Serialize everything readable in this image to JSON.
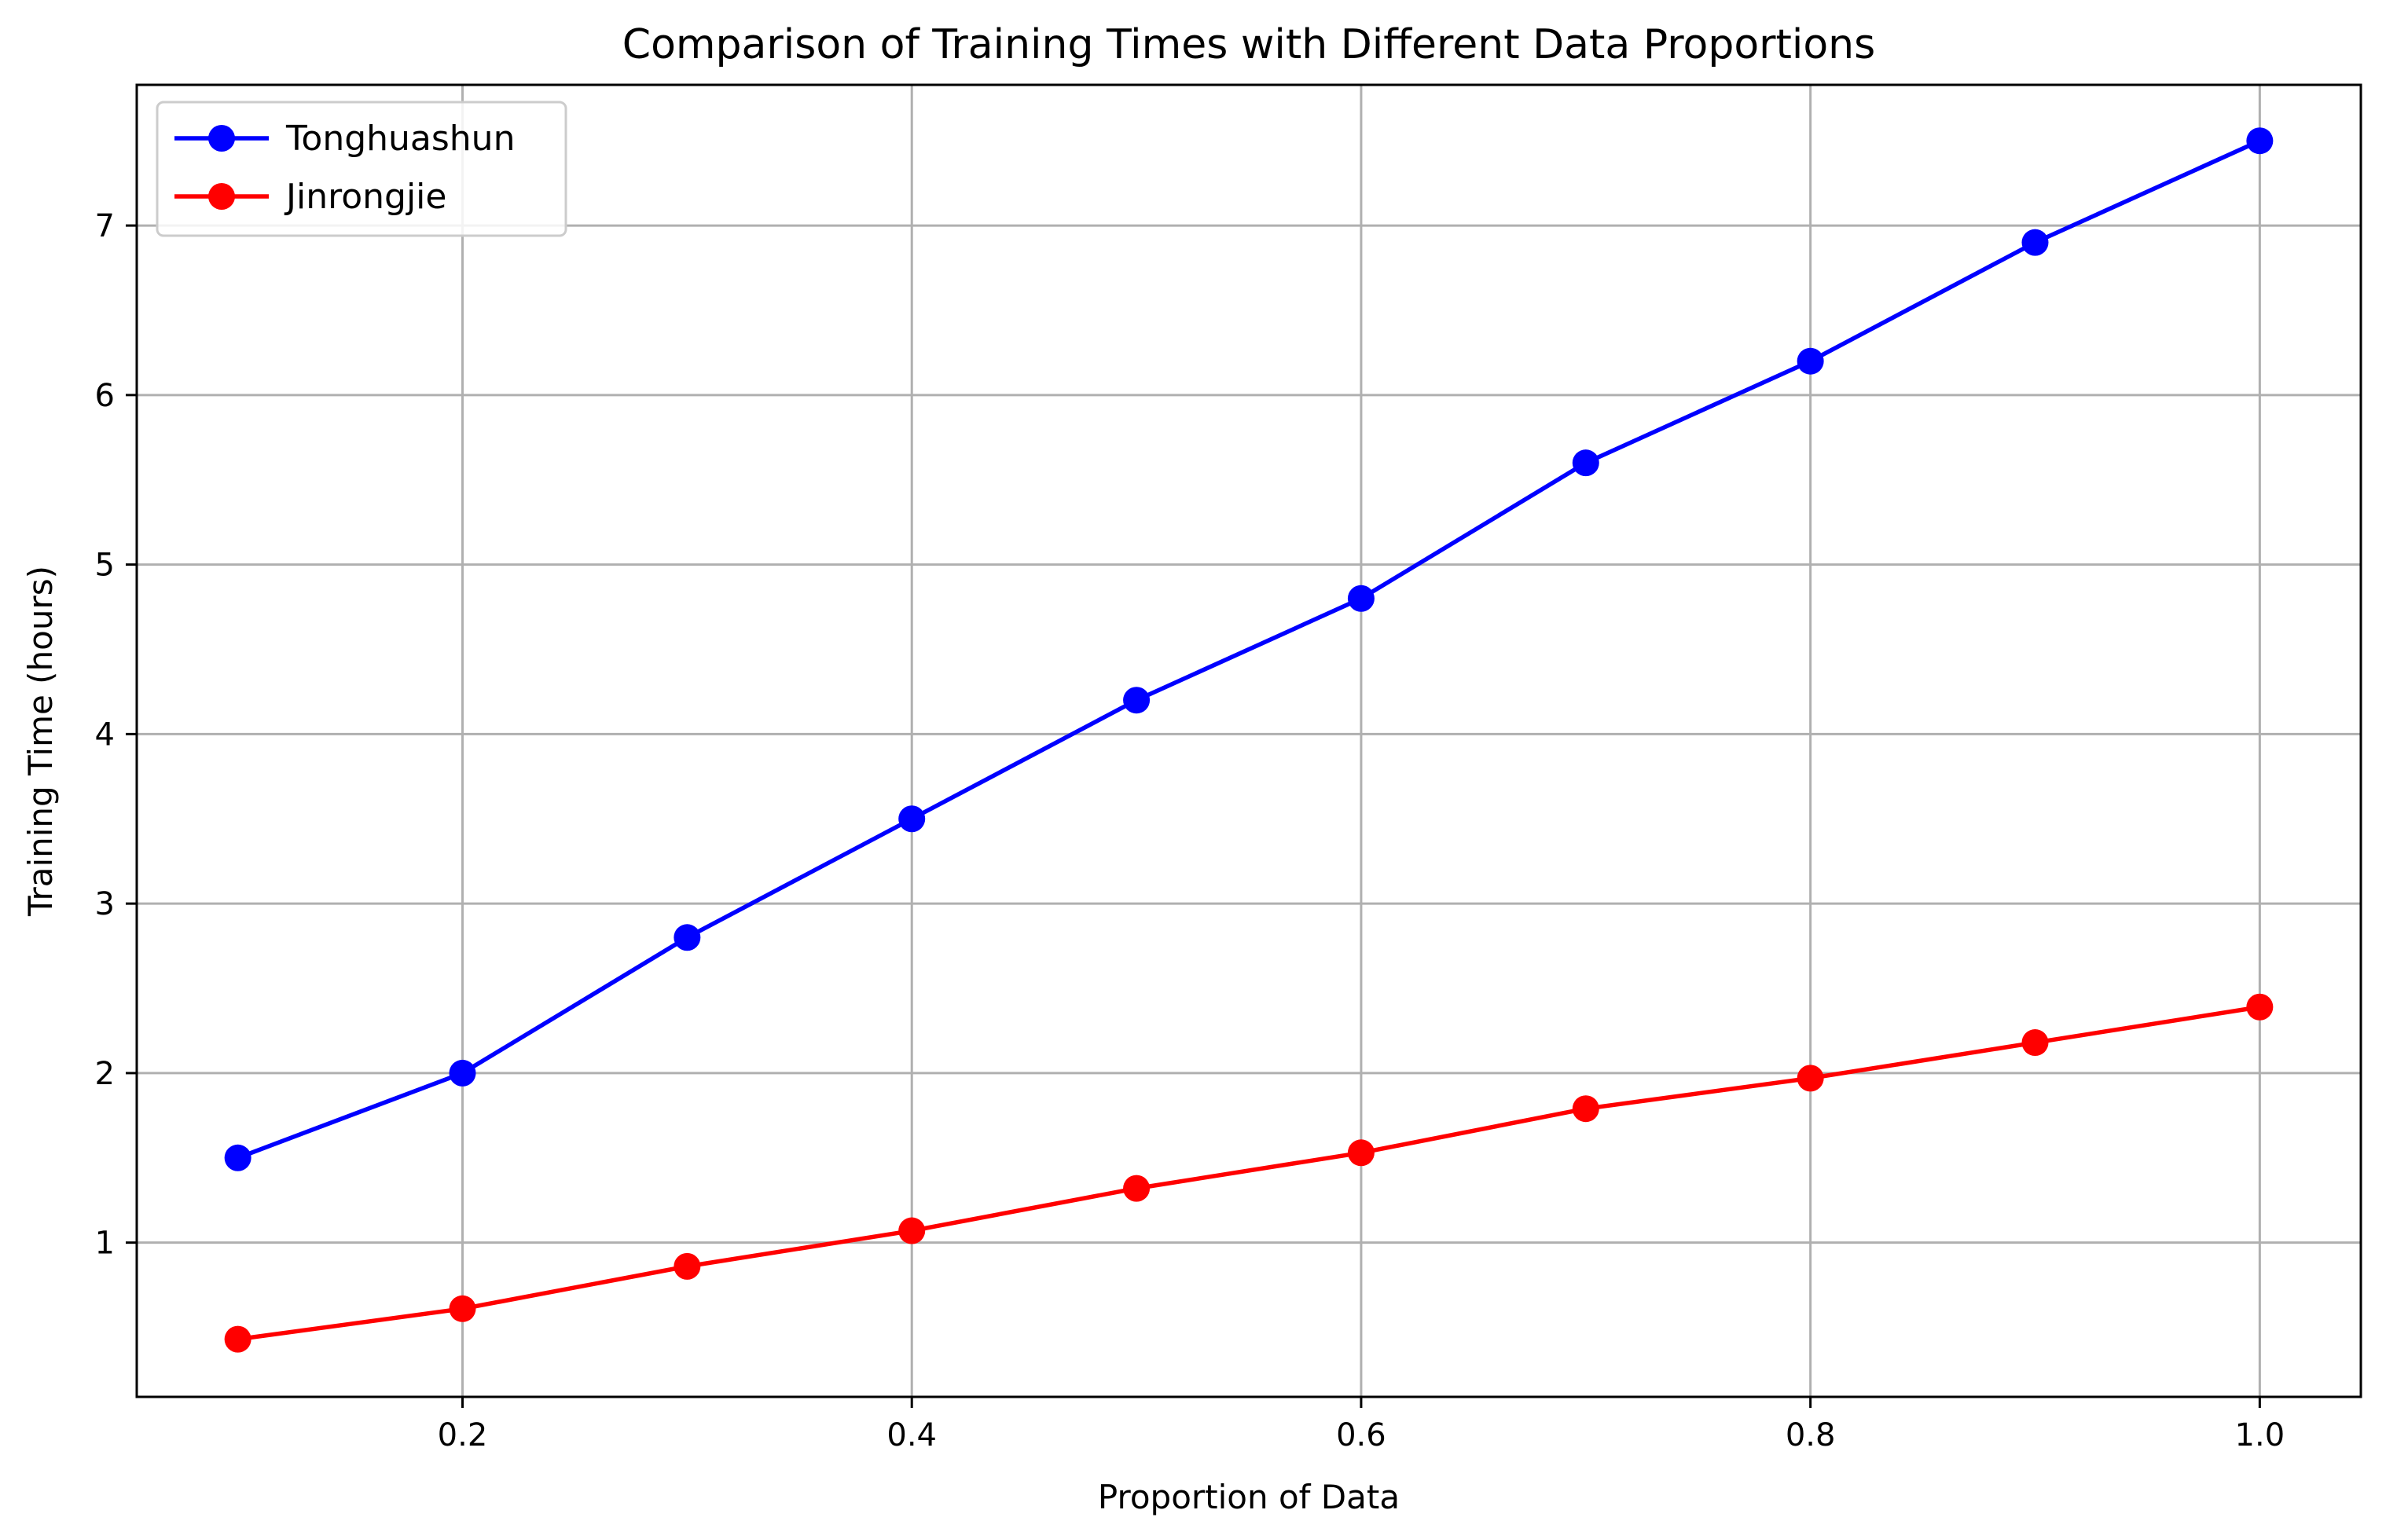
{
  "chart_data": {
    "type": "line",
    "title": "Comparison of Training Times with Different Data Proportions",
    "xlabel": "Proportion of Data",
    "ylabel": "Training Time (hours)",
    "x": [
      0.1,
      0.2,
      0.3,
      0.4,
      0.5,
      0.6,
      0.7,
      0.8,
      0.9,
      1.0
    ],
    "xlim": [
      0.055,
      1.045
    ],
    "ylim": [
      0.09,
      7.83
    ],
    "xticks": [
      0.2,
      0.4,
      0.6,
      0.8,
      1.0
    ],
    "xtick_labels": [
      "0.2",
      "0.4",
      "0.6",
      "0.8",
      "1.0"
    ],
    "yticks": [
      1,
      2,
      3,
      4,
      5,
      6,
      7
    ],
    "ytick_labels": [
      "1",
      "2",
      "3",
      "4",
      "5",
      "6",
      "7"
    ],
    "grid": true,
    "legend_position": "top-left",
    "series": [
      {
        "name": "Tonghuashun",
        "color": "#0000ff",
        "marker": "circle",
        "values": [
          1.5,
          2.0,
          2.8,
          3.5,
          4.2,
          4.8,
          5.6,
          6.2,
          6.9,
          7.5
        ]
      },
      {
        "name": "Jinrongjie",
        "color": "#ff0000",
        "marker": "circle",
        "values": [
          0.43,
          0.61,
          0.86,
          1.07,
          1.32,
          1.53,
          1.79,
          1.97,
          2.18,
          2.39
        ]
      }
    ]
  }
}
